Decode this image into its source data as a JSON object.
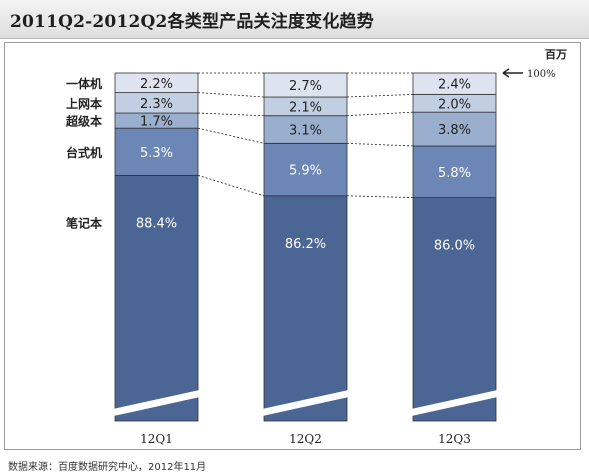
{
  "header": {
    "title": "2011Q2-2012Q2各类型产品关注度变化趋势"
  },
  "unit_label": "百万",
  "footer": {
    "source": "数据来源：百度数据研究中心，2012年11月"
  },
  "colors": {
    "segments": [
      "#4b6595",
      "#6c87b5",
      "#9aaece",
      "#c2cee2",
      "#dde4ef"
    ],
    "dark_label": "#222222",
    "light_label": "#ffffff"
  },
  "chart_data": {
    "type": "bar",
    "stacked": true,
    "title": "2011Q2-2012Q2各类型产品关注度变化趋势",
    "unit": "百万",
    "top_marker": "100%",
    "categories": [
      "12Q1",
      "12Q2",
      "12Q3"
    ],
    "series": [
      {
        "name": "笔记本",
        "values": [
          88.4,
          86.2,
          86.0
        ],
        "labels": [
          "88.4%",
          "86.2%",
          "86.0%"
        ]
      },
      {
        "name": "台式机",
        "values": [
          5.3,
          5.9,
          5.8
        ],
        "labels": [
          "5.3%",
          "5.9%",
          "5.8%"
        ]
      },
      {
        "name": "超级本",
        "values": [
          1.7,
          3.1,
          3.8
        ],
        "labels": [
          "1.7%",
          "3.1%",
          "3.8%"
        ]
      },
      {
        "name": "上网本",
        "values": [
          2.3,
          2.1,
          2.0
        ],
        "labels": [
          "2.3%",
          "2.1%",
          "2.0%"
        ]
      },
      {
        "name": "一体机",
        "values": [
          2.2,
          2.7,
          2.4
        ],
        "labels": [
          "2.2%",
          "2.7%",
          "2.4%"
        ]
      }
    ],
    "axis_break": true,
    "ylim": [
      0,
      100
    ]
  }
}
